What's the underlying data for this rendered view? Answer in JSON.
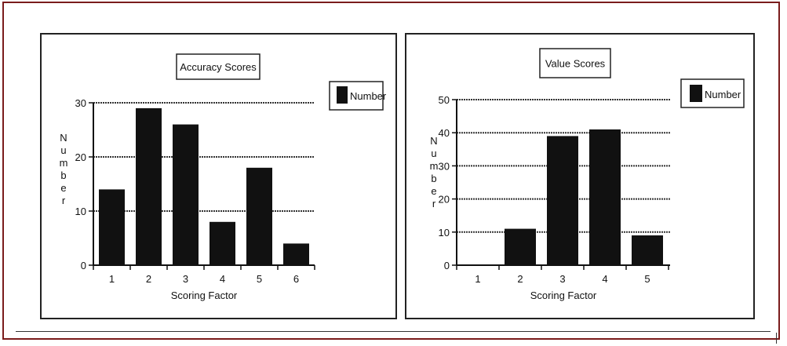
{
  "chart_data": [
    {
      "type": "bar",
      "title": "Accuracy Scores",
      "xlabel": "Scoring Factor",
      "ylabel": "Number",
      "categories": [
        "1",
        "2",
        "3",
        "4",
        "5",
        "6"
      ],
      "ylim": [
        0,
        30
      ],
      "yticks": [
        0,
        10,
        20,
        30
      ],
      "series": [
        {
          "name": "Number",
          "values": [
            14,
            29,
            26,
            8,
            18,
            4
          ]
        }
      ],
      "grid": true,
      "legend": "right",
      "bar_color": "#111111"
    },
    {
      "type": "bar",
      "title": "Value Scores",
      "xlabel": "Scoring Factor",
      "ylabel": "Number",
      "categories": [
        "1",
        "2",
        "3",
        "4",
        "5"
      ],
      "ylim": [
        0,
        50
      ],
      "yticks": [
        0,
        10,
        20,
        30,
        40,
        50
      ],
      "series": [
        {
          "name": "Number",
          "values": [
            0,
            11,
            39,
            41,
            9
          ]
        }
      ],
      "grid": true,
      "legend": "right",
      "bar_color": "#111111"
    }
  ]
}
